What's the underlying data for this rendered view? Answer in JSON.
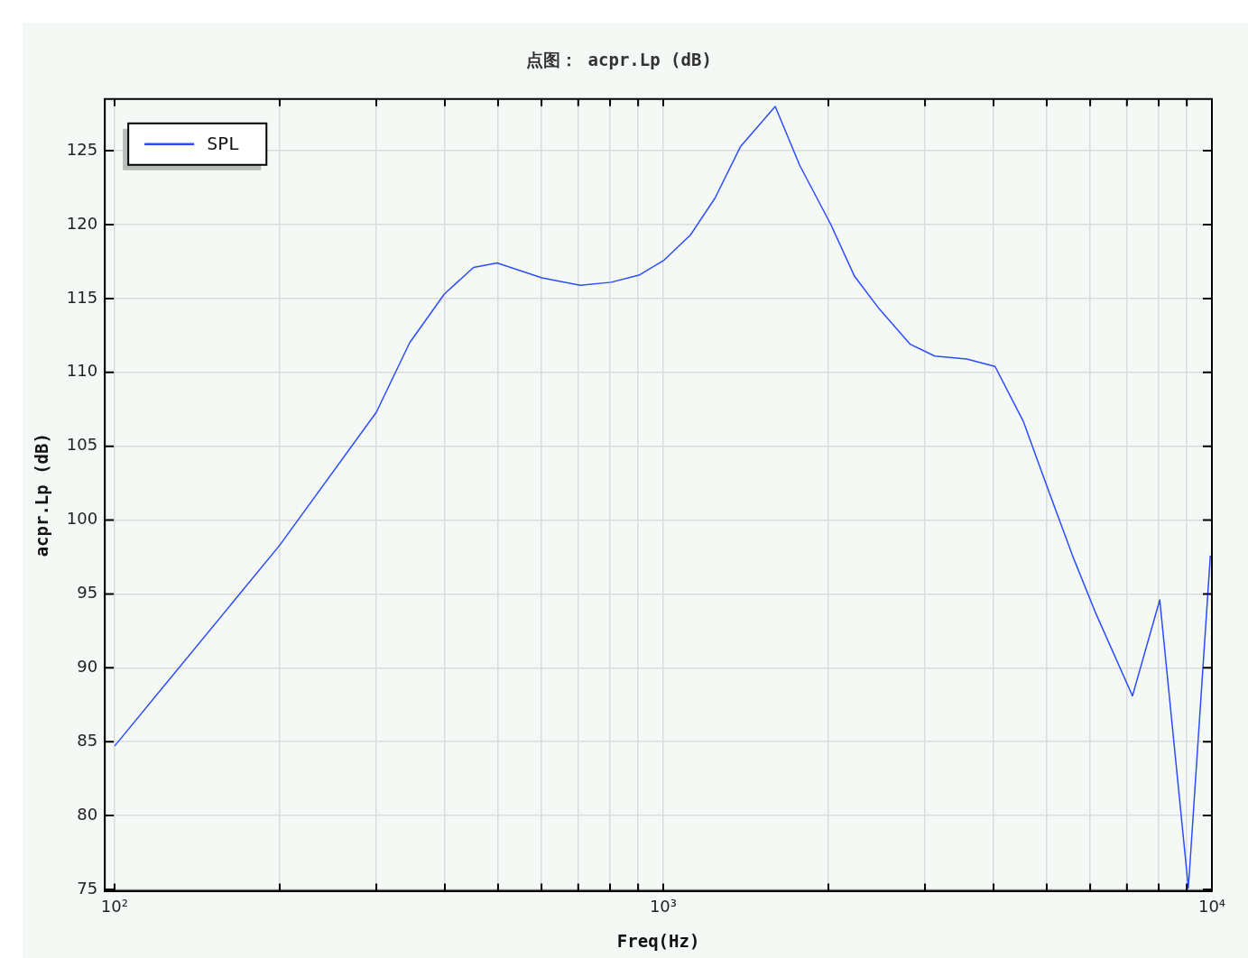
{
  "chart_data": {
    "type": "line",
    "title": "点图： acpr.Lp (dB)",
    "xlabel": "Freq(Hz)",
    "ylabel": "acpr.Lp (dB)",
    "log": "x",
    "grid": true,
    "legend": "top left",
    "line_style": "solid",
    "marker": "none",
    "xlim": [
      96,
      10000
    ],
    "ylim": [
      74.9,
      128.5
    ],
    "xticks": [
      {
        "value": 100,
        "label": "10²"
      },
      {
        "value": 200,
        "label": null
      },
      {
        "value": 300,
        "label": null
      },
      {
        "value": 400,
        "label": null
      },
      {
        "value": 500,
        "label": null
      },
      {
        "value": 600,
        "label": null
      },
      {
        "value": 700,
        "label": null
      },
      {
        "value": 800,
        "label": null
      },
      {
        "value": 900,
        "label": null
      },
      {
        "value": 1000,
        "label": "10³"
      },
      {
        "value": 2000,
        "label": null
      },
      {
        "value": 3000,
        "label": null
      },
      {
        "value": 4000,
        "label": null
      },
      {
        "value": 5000,
        "label": null
      },
      {
        "value": 6000,
        "label": null
      },
      {
        "value": 7000,
        "label": null
      },
      {
        "value": 8000,
        "label": null
      },
      {
        "value": 9000,
        "label": null
      },
      {
        "value": 10000,
        "label": "10⁴"
      }
    ],
    "yticks": [
      75,
      80,
      85,
      90,
      95,
      100,
      105,
      110,
      115,
      120,
      125
    ],
    "x": [
      100,
      200,
      300,
      345,
      399,
      451,
      498,
      601,
      706,
      804,
      906,
      1004,
      1121,
      1243,
      1384,
      1600,
      1774,
      2021,
      2232,
      2475,
      2820,
      3126,
      3575,
      4025,
      4530,
      5060,
      5570,
      6125,
      7165,
      8035,
      9060,
      9935
    ],
    "series": [
      {
        "name": "SPL",
        "color": "#2b4cff",
        "values": [
          84.7,
          98.3,
          107.3,
          112.0,
          115.3,
          117.1,
          117.4,
          116.4,
          115.9,
          116.1,
          116.6,
          117.6,
          119.3,
          121.8,
          125.3,
          128.0,
          124.0,
          120.0,
          116.5,
          114.3,
          111.9,
          111.1,
          110.9,
          110.4,
          106.7,
          101.8,
          97.6,
          93.8,
          88.1,
          94.6,
          75.1,
          97.6
        ]
      }
    ]
  }
}
